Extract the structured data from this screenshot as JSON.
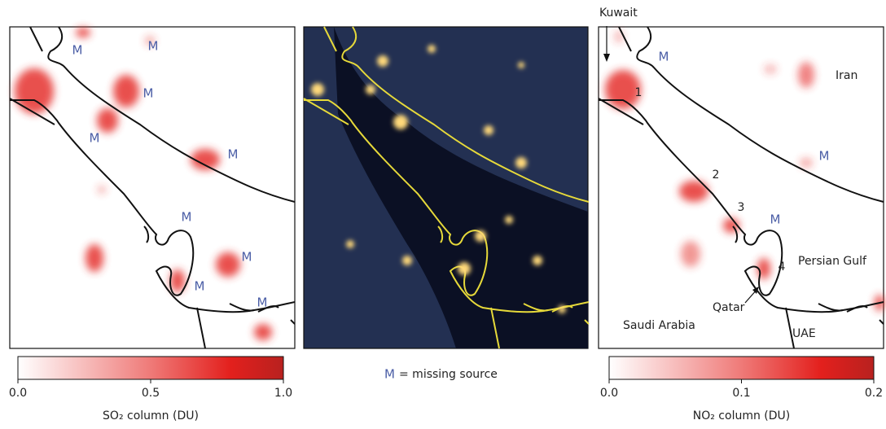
{
  "left_panel": {
    "markers": [
      "M",
      "M",
      "M",
      "M",
      "M",
      "M",
      "M",
      "M",
      "M"
    ]
  },
  "middle_panel": {
    "legend": {
      "symbol": "M",
      "text": "= missing source"
    }
  },
  "right_panel": {
    "markers": [
      "M",
      "M",
      "M"
    ],
    "sources": [
      "1",
      "2",
      "3",
      "4"
    ],
    "places": [
      "Kuwait",
      "Iran",
      "Persian Gulf",
      "Qatar",
      "Saudi Arabia",
      "UAE"
    ]
  },
  "colorbars": [
    {
      "label": "SO₂ column (DU)",
      "lim": [
        0,
        1
      ],
      "ticks": [
        {
          "value": 0,
          "label": "0.0"
        },
        0.5,
        {
          "value": 1,
          "label": "1.0"
        }
      ]
    },
    {
      "label": "NO₂ column (DU)",
      "lim": [
        0,
        0.2
      ],
      "ticks": [
        {
          "value": 0,
          "label": "0.0"
        },
        0.1,
        0.2
      ]
    }
  ]
}
